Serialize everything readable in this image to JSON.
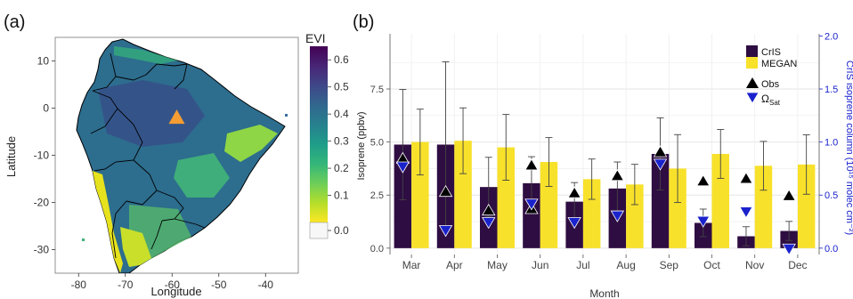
{
  "chart_data": [
    {
      "type": "heatmap",
      "panel_label": "(a)",
      "xlabel": "Longitude",
      "ylabel": "Latitude",
      "xlim": [
        -85,
        -33
      ],
      "ylim": [
        -35,
        15
      ],
      "x_ticks": [
        -80,
        -70,
        -60,
        -50,
        -40
      ],
      "y_ticks": [
        10,
        0,
        -10,
        -20,
        -30
      ],
      "colorbar": {
        "title": "EVI",
        "range": [
          0,
          0.65
        ],
        "ticks": [
          0.6,
          0.5,
          0.4,
          0.3,
          0.2,
          0.1,
          0.0
        ],
        "tick_labels": [
          "0.6",
          "0.5",
          "0.4",
          "0.3",
          "0.2",
          "0.1",
          "0.0"
        ],
        "low_color": "#f7f7f7",
        "stops": [
          "#fde725",
          "#b5de2b",
          "#6ece58",
          "#35b779",
          "#1f9e89",
          "#26828e",
          "#31688e",
          "#3e4989",
          "#482878",
          "#440154"
        ]
      },
      "site_marker": {
        "shape": "triangle",
        "lon": -59,
        "lat": -2,
        "color": "#f59c33"
      }
    },
    {
      "type": "bar",
      "panel_label": "(b)",
      "categories": [
        "Mar",
        "Apr",
        "May",
        "Jun",
        "Jul",
        "Aug",
        "Sep",
        "Oct",
        "Nov",
        "Dec"
      ],
      "xlabel": "Month",
      "ylabel": "Isoprene (ppbv)",
      "ylabel_right": "CrIS isoprene column (10¹⁵ molec cm⁻²)",
      "ylim": [
        -0.3,
        10.1
      ],
      "y_ticks": [
        0,
        2.5,
        5,
        7.5
      ],
      "y_tick_labels": [
        "0.0",
        "2.5",
        "5.0",
        "7.5"
      ],
      "ylim_right": [
        -0.06,
        2.02
      ],
      "y2_ticks": [
        0,
        0.5,
        1,
        1.5,
        2
      ],
      "y2_tick_labels": [
        "0.0",
        "0.5",
        "1.0",
        "1.5",
        "2.0"
      ],
      "series": [
        {
          "name": "CrIS",
          "color": "#2e0d42",
          "values": [
            4.88,
            4.88,
            2.88,
            3.06,
            2.19,
            2.81,
            4.44,
            1.19,
            0.56,
            0.81
          ],
          "errors": [
            2.6,
            3.9,
            1.4,
            1.25,
            0.9,
            1.25,
            1.7,
            0.65,
            0.45,
            0.45
          ]
        },
        {
          "name": "MEGAN",
          "color": "#f8e12a",
          "values": [
            5.0,
            5.06,
            4.75,
            4.06,
            3.25,
            3.0,
            3.75,
            4.44,
            3.88,
            3.94
          ],
          "errors": [
            1.55,
            1.55,
            1.55,
            1.15,
            0.95,
            0.95,
            1.6,
            1.15,
            1.15,
            1.4
          ]
        }
      ],
      "markers": [
        {
          "name": "Obs",
          "shape": "triangle-up",
          "color": "#000000",
          "values": [
            4.25,
            2.69,
            1.81,
            1.88,
            2.63,
            3.44,
            4.56,
            3.19,
            3.31,
            2.5
          ]
        },
        {
          "name": "Ω",
          "subscript": "Sat",
          "shape": "triangle-down",
          "color": "#1a22cc",
          "values": [
            3.81,
            0.81,
            1.19,
            2.06,
            1.19,
            1.5,
            3.94,
            1.25,
            1.69,
            -0.06
          ]
        }
      ],
      "extra_obs": [
        {
          "category": "Jun",
          "value": 3.94
        }
      ],
      "legend_position": "top-right",
      "grid": true
    }
  ]
}
